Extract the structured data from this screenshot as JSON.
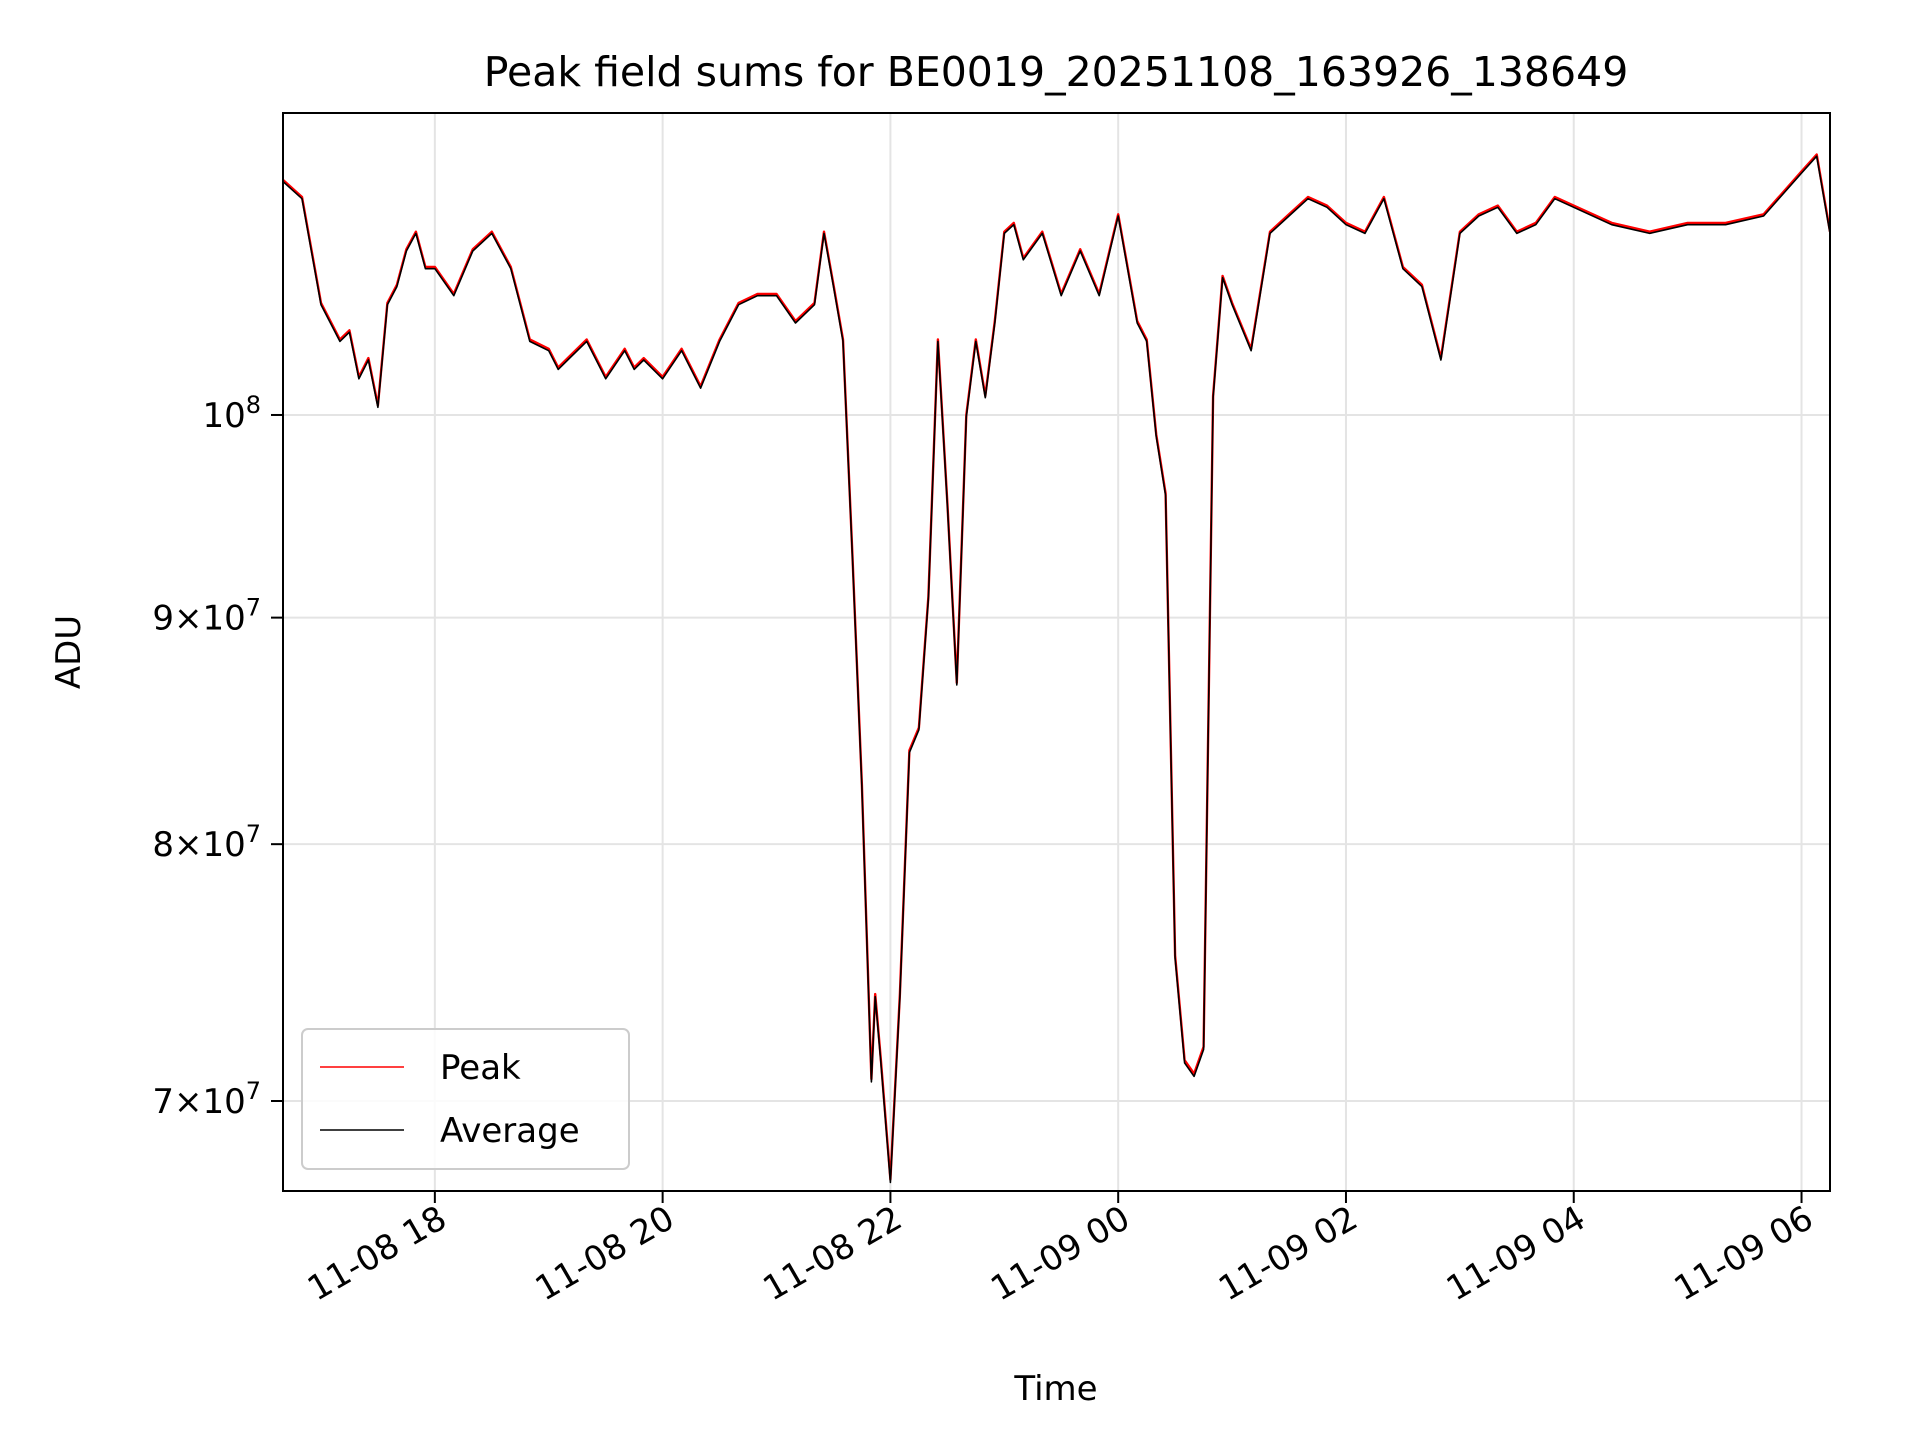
{
  "chart_data": {
    "type": "line",
    "title": "Peak field sums for BE0019_20251108_163926_138649",
    "xlabel": "Time",
    "ylabel": "ADU",
    "yscale": "log",
    "grid": true,
    "legend_position": "lower-left",
    "xlim": [
      "2025-11-08 16:40",
      "2025-11-09 06:15"
    ],
    "ylim": [
      66800000,
      117000000
    ],
    "x_ticks": [
      {
        "value": "2025-11-08 18:00",
        "label": "11-08 18"
      },
      {
        "value": "2025-11-08 20:00",
        "label": "11-08 20"
      },
      {
        "value": "2025-11-08 22:00",
        "label": "11-08 22"
      },
      {
        "value": "2025-11-09 00:00",
        "label": "11-09 00"
      },
      {
        "value": "2025-11-09 02:00",
        "label": "11-09 02"
      },
      {
        "value": "2025-11-09 04:00",
        "label": "11-09 04"
      },
      {
        "value": "2025-11-09 06:00",
        "label": "11-09 06"
      }
    ],
    "y_ticks": [
      {
        "value": 70000000,
        "mantissa": "7",
        "exponent": "7"
      },
      {
        "value": 80000000,
        "mantissa": "8",
        "exponent": "7"
      },
      {
        "value": 90000000,
        "mantissa": "9",
        "exponent": "7"
      },
      {
        "value": 100000000,
        "mantissa": "",
        "exponent": "8"
      }
    ],
    "x": [
      "2025-11-08 16:40",
      "2025-11-08 16:50",
      "2025-11-08 17:00",
      "2025-11-08 17:10",
      "2025-11-08 17:15",
      "2025-11-08 17:20",
      "2025-11-08 17:25",
      "2025-11-08 17:30",
      "2025-11-08 17:35",
      "2025-11-08 17:40",
      "2025-11-08 17:45",
      "2025-11-08 17:50",
      "2025-11-08 17:55",
      "2025-11-08 18:00",
      "2025-11-08 18:10",
      "2025-11-08 18:20",
      "2025-11-08 18:30",
      "2025-11-08 18:40",
      "2025-11-08 18:50",
      "2025-11-08 19:00",
      "2025-11-08 19:05",
      "2025-11-08 19:10",
      "2025-11-08 19:20",
      "2025-11-08 19:30",
      "2025-11-08 19:40",
      "2025-11-08 19:45",
      "2025-11-08 19:50",
      "2025-11-08 20:00",
      "2025-11-08 20:10",
      "2025-11-08 20:20",
      "2025-11-08 20:30",
      "2025-11-08 20:40",
      "2025-11-08 20:50",
      "2025-11-08 21:00",
      "2025-11-08 21:10",
      "2025-11-08 21:20",
      "2025-11-08 21:25",
      "2025-11-08 21:30",
      "2025-11-08 21:35",
      "2025-11-08 21:40",
      "2025-11-08 21:45",
      "2025-11-08 21:50",
      "2025-11-08 21:52",
      "2025-11-08 21:55",
      "2025-11-08 22:00",
      "2025-11-08 22:05",
      "2025-11-08 22:10",
      "2025-11-08 22:15",
      "2025-11-08 22:20",
      "2025-11-08 22:25",
      "2025-11-08 22:30",
      "2025-11-08 22:35",
      "2025-11-08 22:40",
      "2025-11-08 22:45",
      "2025-11-08 22:50",
      "2025-11-08 22:55",
      "2025-11-08 23:00",
      "2025-11-08 23:05",
      "2025-11-08 23:10",
      "2025-11-08 23:20",
      "2025-11-08 23:30",
      "2025-11-08 23:40",
      "2025-11-08 23:50",
      "2025-11-09 00:00",
      "2025-11-09 00:10",
      "2025-11-09 00:15",
      "2025-11-09 00:20",
      "2025-11-09 00:25",
      "2025-11-09 00:30",
      "2025-11-09 00:35",
      "2025-11-09 00:40",
      "2025-11-09 00:45",
      "2025-11-09 00:50",
      "2025-11-09 00:55",
      "2025-11-09 01:00",
      "2025-11-09 01:10",
      "2025-11-09 01:20",
      "2025-11-09 01:30",
      "2025-11-09 01:40",
      "2025-11-09 01:50",
      "2025-11-09 02:00",
      "2025-11-09 02:10",
      "2025-11-09 02:20",
      "2025-11-09 02:30",
      "2025-11-09 02:40",
      "2025-11-09 02:50",
      "2025-11-09 03:00",
      "2025-11-09 03:10",
      "2025-11-09 03:20",
      "2025-11-09 03:30",
      "2025-11-09 03:40",
      "2025-11-09 03:50",
      "2025-11-09 04:00",
      "2025-11-09 04:20",
      "2025-11-09 04:40",
      "2025-11-09 05:00",
      "2025-11-09 05:20",
      "2025-11-09 05:40",
      "2025-11-09 06:00",
      "2025-11-09 06:08",
      "2025-11-09 06:15"
    ],
    "series": [
      {
        "name": "Peak",
        "color": "#ff0000",
        "values": [
          113000000,
          112000000,
          106000000,
          104000000,
          104500000,
          102000000,
          103000000,
          100500000,
          106000000,
          107000000,
          109000000,
          110000000,
          108000000,
          108000000,
          106500000,
          109000000,
          110000000,
          108000000,
          104000000,
          103500000,
          102500000,
          103000000,
          104000000,
          102000000,
          103500000,
          102500000,
          103000000,
          102000000,
          103500000,
          101500000,
          104000000,
          106000000,
          106500000,
          106500000,
          105000000,
          106000000,
          110000000,
          107000000,
          104000000,
          93000000,
          82500000,
          70800000,
          74000000,
          71500000,
          67200000,
          74000000,
          84000000,
          85000000,
          91000000,
          104000000,
          95500000,
          87000000,
          100000000,
          104000000,
          101000000,
          105000000,
          110000000,
          110500000,
          108500000,
          110000000,
          106500000,
          109000000,
          106500000,
          111000000,
          105000000,
          104000000,
          99000000,
          96000000,
          75500000,
          71500000,
          71000000,
          72000000,
          101000000,
          107500000,
          106000000,
          103500000,
          110000000,
          111000000,
          112000000,
          111500000,
          110500000,
          110000000,
          112000000,
          108000000,
          107000000,
          103000000,
          110000000,
          111000000,
          111500000,
          110000000,
          110500000,
          112000000,
          111500000,
          110500000,
          110000000,
          110500000,
          110500000,
          111000000,
          113500000,
          114500000,
          110000000
        ]
      },
      {
        "name": "Average",
        "color": "#000000",
        "values": [
          112900000,
          111900000,
          105900000,
          103900000,
          104400000,
          101900000,
          102900000,
          100400000,
          105900000,
          106900000,
          108900000,
          109900000,
          107900000,
          107900000,
          106400000,
          108900000,
          109900000,
          107900000,
          103900000,
          103400000,
          102400000,
          102900000,
          103900000,
          101900000,
          103400000,
          102400000,
          102900000,
          101900000,
          103400000,
          101400000,
          103900000,
          105900000,
          106400000,
          106400000,
          104900000,
          105900000,
          109900000,
          106900000,
          103900000,
          92900000,
          82400000,
          70700000,
          73900000,
          71400000,
          67100000,
          73900000,
          83900000,
          84900000,
          90900000,
          103900000,
          95400000,
          86900000,
          99900000,
          103900000,
          100900000,
          104900000,
          109900000,
          110400000,
          108400000,
          109900000,
          106400000,
          108900000,
          106400000,
          110900000,
          104900000,
          103900000,
          98900000,
          95900000,
          75400000,
          71400000,
          70900000,
          71900000,
          100900000,
          107400000,
          105900000,
          103400000,
          109900000,
          110900000,
          111900000,
          111400000,
          110400000,
          109900000,
          111900000,
          107900000,
          106900000,
          102900000,
          109900000,
          110900000,
          111400000,
          109900000,
          110400000,
          111900000,
          111400000,
          110400000,
          109900000,
          110400000,
          110400000,
          110900000,
          113400000,
          114400000,
          109900000
        ]
      }
    ]
  }
}
